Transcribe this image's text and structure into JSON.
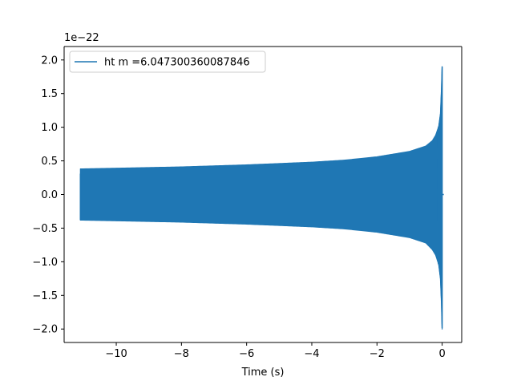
{
  "chart_data": {
    "type": "line",
    "title": "",
    "xlabel": "Time (s)",
    "ylabel": "",
    "y_offset_label": "1e−22",
    "xlim": [
      -11.6,
      0.6
    ],
    "ylim": [
      -2.2,
      2.2
    ],
    "x_ticks": [
      -10,
      -8,
      -6,
      -4,
      -2,
      0
    ],
    "x_tick_labels": [
      "−10",
      "−8",
      "−6",
      "−4",
      "−2",
      "0"
    ],
    "y_ticks": [
      -2.0,
      -1.5,
      -1.0,
      -0.5,
      0.0,
      0.5,
      1.0,
      1.5,
      2.0
    ],
    "y_tick_labels": [
      "−2.0",
      "−1.5",
      "−1.0",
      "−0.5",
      "0.0",
      "0.5",
      "1.0",
      "1.5",
      "2.0"
    ],
    "grid": false,
    "legend_position": "upper-left",
    "series": [
      {
        "name": "ht m =6.047300360087846",
        "color": "#1f77b4",
        "x_start": -11.1,
        "x_end": 0.0,
        "envelope_upper": [
          [
            -11.1,
            0.38
          ],
          [
            -10.0,
            0.39
          ],
          [
            -8.0,
            0.41
          ],
          [
            -6.0,
            0.44
          ],
          [
            -4.0,
            0.48
          ],
          [
            -3.0,
            0.51
          ],
          [
            -2.0,
            0.56
          ],
          [
            -1.0,
            0.64
          ],
          [
            -0.5,
            0.72
          ],
          [
            -0.3,
            0.8
          ],
          [
            -0.2,
            0.88
          ],
          [
            -0.1,
            1.02
          ],
          [
            -0.05,
            1.2
          ],
          [
            -0.02,
            1.55
          ],
          [
            0.0,
            1.9
          ]
        ],
        "envelope_lower": [
          [
            -11.1,
            -0.38
          ],
          [
            -10.0,
            -0.39
          ],
          [
            -8.0,
            -0.41
          ],
          [
            -6.0,
            -0.44
          ],
          [
            -4.0,
            -0.48
          ],
          [
            -3.0,
            -0.51
          ],
          [
            -2.0,
            -0.56
          ],
          [
            -1.0,
            -0.64
          ],
          [
            -0.5,
            -0.72
          ],
          [
            -0.3,
            -0.82
          ],
          [
            -0.2,
            -0.9
          ],
          [
            -0.1,
            -1.05
          ],
          [
            -0.05,
            -1.25
          ],
          [
            -0.02,
            -1.6
          ],
          [
            0.0,
            -2.0
          ]
        ],
        "merger_time": 0.0,
        "ringdown_end": 0.05
      }
    ]
  }
}
